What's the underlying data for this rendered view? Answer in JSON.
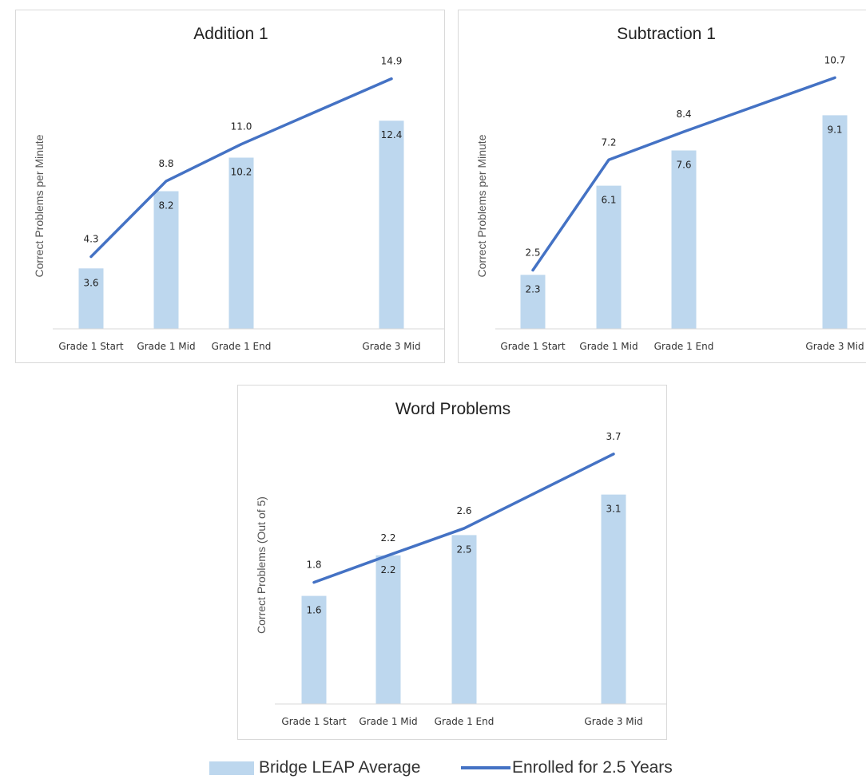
{
  "legend": {
    "bar_label": "Bridge LEAP Average",
    "line_label": "Enrolled for 2.5 Years"
  },
  "colors": {
    "bar": "#bdd7ee",
    "line": "#4472c4",
    "axis": "#d9d9d9"
  },
  "chart_data": [
    {
      "type": "bar",
      "title": "Addition 1",
      "ylabel": "Correct Problems per Minute",
      "xlabel": "",
      "categories": [
        "Grade 1 Start",
        "Grade 1 Mid",
        "Grade 1 End",
        "Grade 3 Mid"
      ],
      "ylim": [
        0,
        16.5
      ],
      "series": [
        {
          "name": "Bridge LEAP Average",
          "type": "bar",
          "values": [
            3.6,
            8.2,
            10.2,
            12.4
          ],
          "labels": [
            "3.6",
            "8.2",
            "10.2",
            "12.4"
          ]
        },
        {
          "name": "Enrolled for 2.5 Years",
          "type": "line",
          "values": [
            4.3,
            8.8,
            11.0,
            14.9
          ],
          "labels": [
            "4.3",
            "8.8",
            "11.0",
            "14.9"
          ]
        }
      ],
      "legend": "bottom",
      "grid": false
    },
    {
      "type": "bar",
      "title": "Subtraction 1",
      "ylabel": "Correct Problems per Minute",
      "xlabel": "",
      "categories": [
        "Grade 1 Start",
        "Grade 1 Mid",
        "Grade 1 End",
        "Grade 3 Mid"
      ],
      "ylim": [
        0,
        11.8
      ],
      "series": [
        {
          "name": "Bridge LEAP Average",
          "type": "bar",
          "values": [
            2.3,
            6.1,
            7.6,
            9.1
          ],
          "labels": [
            "2.3",
            "6.1",
            "7.6",
            "9.1"
          ]
        },
        {
          "name": "Enrolled for 2.5 Years",
          "type": "line",
          "values": [
            2.5,
            7.2,
            8.4,
            10.7
          ],
          "labels": [
            "2.5",
            "7.2",
            "8.4",
            "10.7"
          ]
        }
      ],
      "legend": "bottom",
      "grid": false
    },
    {
      "type": "bar",
      "title": "Word Problems",
      "ylabel": "Correct Problems (Out of 5)",
      "xlabel": "",
      "categories": [
        "Grade 1 Start",
        "Grade 1 Mid",
        "Grade 1 End",
        "Grade 3 Mid"
      ],
      "ylim": [
        0,
        4.1
      ],
      "series": [
        {
          "name": "Bridge LEAP Average",
          "type": "bar",
          "values": [
            1.6,
            2.2,
            2.5,
            3.1
          ],
          "labels": [
            "1.6",
            "2.2",
            "2.5",
            "3.1"
          ]
        },
        {
          "name": "Enrolled for 2.5 Years",
          "type": "line",
          "values": [
            1.8,
            2.2,
            2.6,
            3.7
          ],
          "labels": [
            "1.8",
            "2.2",
            "2.6",
            "3.7"
          ]
        }
      ],
      "legend": "bottom",
      "grid": false
    }
  ]
}
